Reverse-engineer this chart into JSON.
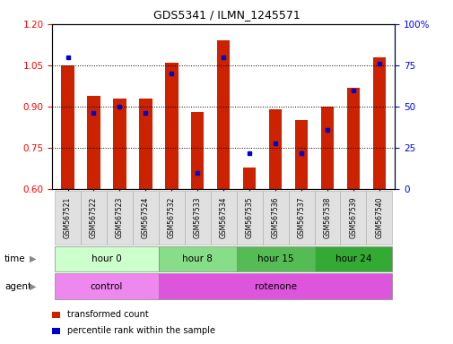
{
  "title": "GDS5341 / ILMN_1245571",
  "samples": [
    "GSM567521",
    "GSM567522",
    "GSM567523",
    "GSM567524",
    "GSM567532",
    "GSM567533",
    "GSM567534",
    "GSM567535",
    "GSM567536",
    "GSM567537",
    "GSM567538",
    "GSM567539",
    "GSM567540"
  ],
  "transformed_count": [
    1.05,
    0.94,
    0.93,
    0.93,
    1.06,
    0.88,
    1.14,
    0.68,
    0.89,
    0.85,
    0.9,
    0.97,
    1.08
  ],
  "percentile_rank": [
    80,
    46,
    50,
    46,
    70,
    10,
    80,
    22,
    28,
    22,
    36,
    60,
    76
  ],
  "ylim": [
    0.6,
    1.2
  ],
  "yticks": [
    0.6,
    0.75,
    0.9,
    1.05,
    1.2
  ],
  "right_ylim": [
    0,
    100
  ],
  "right_yticks": [
    0,
    25,
    50,
    75,
    100
  ],
  "right_yticklabels": [
    "0",
    "25",
    "50",
    "75",
    "100%"
  ],
  "bar_color": "#cc2200",
  "dot_color": "#0000cc",
  "bar_width": 0.5,
  "time_groups": [
    {
      "label": "hour 0",
      "start": 0,
      "end": 4,
      "color": "#ccffcc"
    },
    {
      "label": "hour 8",
      "start": 4,
      "end": 7,
      "color": "#88dd88"
    },
    {
      "label": "hour 15",
      "start": 7,
      "end": 10,
      "color": "#55bb55"
    },
    {
      "label": "hour 24",
      "start": 10,
      "end": 13,
      "color": "#33aa33"
    }
  ],
  "agent_groups": [
    {
      "label": "control",
      "start": 0,
      "end": 4,
      "color": "#ee88ee"
    },
    {
      "label": "rotenone",
      "start": 4,
      "end": 13,
      "color": "#dd55dd"
    }
  ],
  "legend_items": [
    {
      "label": "transformed count",
      "color": "#cc2200"
    },
    {
      "label": "percentile rank within the sample",
      "color": "#0000cc"
    }
  ],
  "time_label": "time",
  "agent_label": "agent",
  "grid_color": "black",
  "xtick_bg": "#dddddd"
}
